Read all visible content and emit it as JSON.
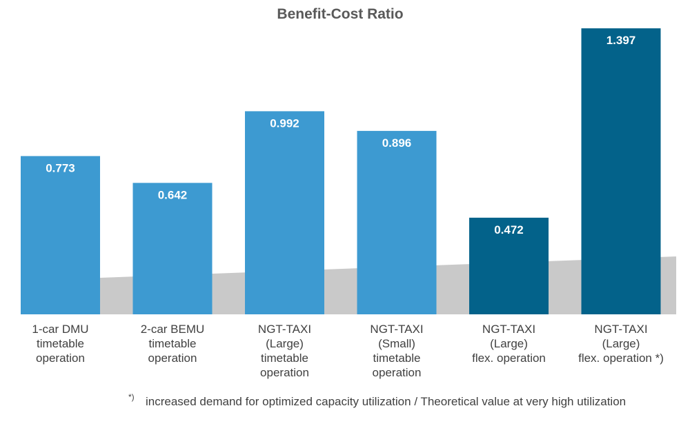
{
  "chart_data": {
    "type": "bar",
    "title": "Benefit-Cost Ratio",
    "xlabel": "",
    "ylabel": "",
    "ylim": [
      0,
      1.4
    ],
    "grid": false,
    "legend": "none",
    "categories": [
      [
        "1-car DMU",
        "timetable",
        "operation"
      ],
      [
        "2-car BEMU",
        "timetable",
        "operation"
      ],
      [
        "NGT-TAXI",
        "(Large)",
        "timetable",
        "operation"
      ],
      [
        "NGT-TAXI",
        "(Small)",
        "timetable",
        "operation"
      ],
      [
        "NGT-TAXI",
        "(Large)",
        "flex. operation"
      ],
      [
        "NGT-TAXI",
        "(Large)",
        "flex. operation *)"
      ]
    ],
    "values": [
      0.773,
      0.642,
      0.992,
      0.896,
      0.472,
      1.397
    ],
    "value_labels": [
      "0.773",
      "0.642",
      "0.992",
      "0.896",
      "0.472",
      "1.397"
    ],
    "colors": [
      "#3d9ad1",
      "#3d9ad1",
      "#3d9ad1",
      "#3d9ad1",
      "#03628a",
      "#03628a"
    ],
    "footnote": {
      "marker": "*)",
      "text": "increased demand for optimized capacity utilization / Theoretical value at very high utilization"
    }
  }
}
